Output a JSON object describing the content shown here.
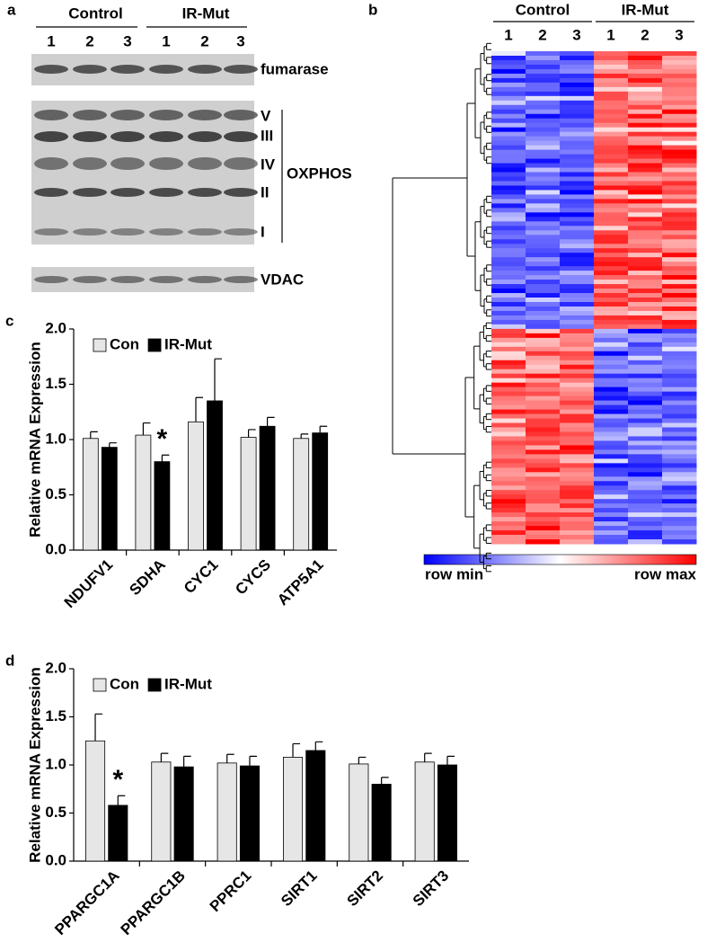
{
  "panels": {
    "a": {
      "label": "a",
      "groups": [
        "Control",
        "IR-Mut"
      ],
      "lanes": [
        "1",
        "2",
        "3",
        "1",
        "2",
        "3"
      ],
      "blots": [
        "fumarase",
        "VDAC"
      ],
      "complexes": [
        "V",
        "III",
        "IV",
        "II",
        "I"
      ],
      "complex_label": "OXPHOS"
    },
    "b": {
      "label": "b",
      "groups": [
        "Control",
        "IR-Mut"
      ],
      "lanes": [
        "1",
        "2",
        "3",
        "1",
        "2",
        "3"
      ],
      "scale": [
        "row min",
        "row max"
      ]
    }
  },
  "chart_data": [
    {
      "type": "bar",
      "panel_label": "c",
      "y_label": "Relative mRNA Expression",
      "categories": [
        "NDUFV1",
        "SDHA",
        "CYC1",
        "CYCS",
        "ATP5A1"
      ],
      "series": [
        {
          "name": "Con",
          "color": "#e6e6e6",
          "values": [
            1.01,
            1.04,
            1.16,
            1.02,
            1.01
          ],
          "errors": [
            0.06,
            0.11,
            0.22,
            0.07,
            0.04
          ]
        },
        {
          "name": "IR-Mut",
          "color": "#000000",
          "values": [
            0.93,
            0.8,
            1.35,
            1.12,
            1.06
          ],
          "errors": [
            0.04,
            0.06,
            0.38,
            0.08,
            0.06
          ],
          "annotations": [
            null,
            "*",
            null,
            null,
            null
          ]
        }
      ],
      "ylim": [
        0,
        2
      ],
      "yticks": [
        {
          "value": 0,
          "label": "0.0"
        },
        {
          "value": 0.5,
          "label": "0.5"
        },
        {
          "value": 1,
          "label": "1.0"
        },
        {
          "value": 1.5,
          "label": "1.5"
        },
        {
          "value": 2,
          "label": "2.0"
        }
      ],
      "legend": "top-left"
    },
    {
      "type": "bar",
      "panel_label": "d",
      "y_label": "Relative mRNA Expression",
      "categories": [
        "PPARGC1A",
        "PPARGC1B",
        "PPRC1",
        "SIRT1",
        "SIRT2",
        "SIRT3"
      ],
      "series": [
        {
          "name": "Con",
          "color": "#e6e6e6",
          "values": [
            1.25,
            1.03,
            1.02,
            1.08,
            1.01,
            1.03
          ],
          "errors": [
            0.28,
            0.09,
            0.09,
            0.14,
            0.07,
            0.09
          ]
        },
        {
          "name": "IR-Mut",
          "color": "#000000",
          "values": [
            0.58,
            0.98,
            0.99,
            1.15,
            0.8,
            1.0
          ],
          "errors": [
            0.1,
            0.11,
            0.1,
            0.09,
            0.07,
            0.09
          ],
          "annotations": [
            "*",
            null,
            null,
            null,
            null,
            null
          ]
        }
      ],
      "ylim": [
        0,
        2
      ],
      "yticks": [
        {
          "value": 0,
          "label": "0.0"
        },
        {
          "value": 0.5,
          "label": "0.5"
        },
        {
          "value": 1,
          "label": "1.0"
        },
        {
          "value": 1.5,
          "label": "1.5"
        },
        {
          "value": 2,
          "label": "2.0"
        }
      ],
      "legend": "top-left"
    }
  ]
}
